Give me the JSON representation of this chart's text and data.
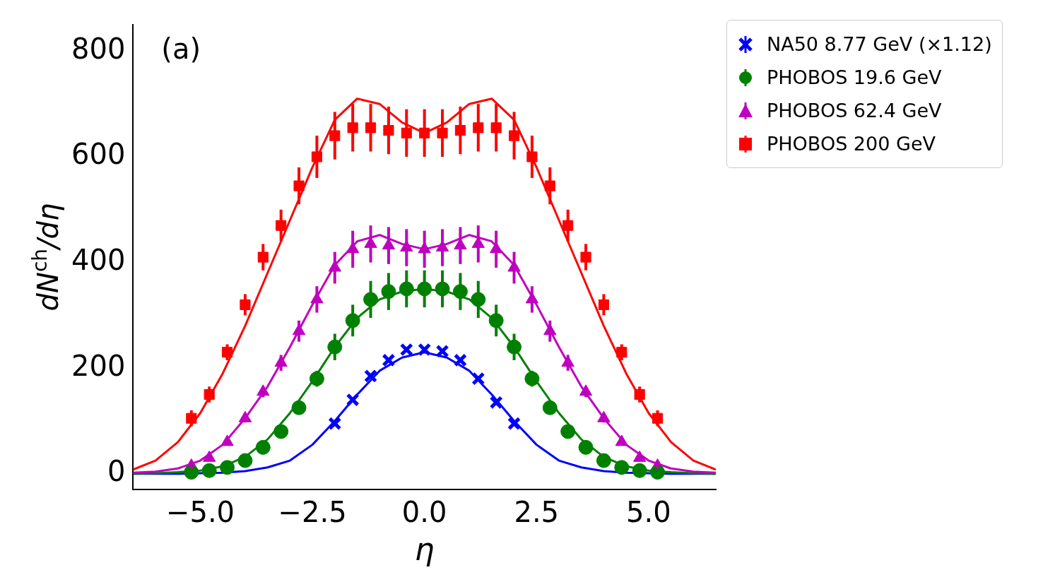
{
  "chart_data": {
    "type": "scatter",
    "xlabel": "η",
    "ylabel": "dN$^{ch}$/dη",
    "annotations": [
      "(a)"
    ],
    "xlim": [
      -6.5,
      6.5
    ],
    "ylim": [
      -30,
      850
    ],
    "xticks": [
      {
        "value": -5,
        "label": "−5.0"
      },
      {
        "value": -2.5,
        "label": "−2.5"
      },
      {
        "value": 0,
        "label": "0.0"
      },
      {
        "value": 2.5,
        "label": "2.5"
      },
      {
        "value": 5,
        "label": "5.0"
      }
    ],
    "yticks": [
      0,
      200,
      400,
      600,
      800
    ],
    "grid": false,
    "legend": "top right",
    "series": [
      {
        "type": "line",
        "color": "#ff0000",
        "marker": "none",
        "line_style": "solid",
        "x": [
          -6.5,
          -6,
          -5.5,
          -5,
          -4.5,
          -4,
          -3.5,
          -3,
          -2.5,
          -2,
          -1.5,
          -1,
          -0.5,
          0,
          0.5,
          1,
          1.5,
          2,
          2.5,
          3,
          3.5,
          4,
          4.5,
          5,
          5.5,
          6,
          6.5
        ],
        "values": [
          8,
          25,
          60,
          115,
          190,
          280,
          380,
          480,
          580,
          670,
          710,
          700,
          665,
          645,
          665,
          700,
          710,
          670,
          580,
          480,
          380,
          280,
          190,
          115,
          60,
          25,
          8
        ]
      },
      {
        "type": "line",
        "color": "#bf00bf",
        "marker": "none",
        "line_style": "solid",
        "x": [
          -6.5,
          -6,
          -5.5,
          -5,
          -4.5,
          -4,
          -3.5,
          -3,
          -2.5,
          -2,
          -1.5,
          -1,
          -0.5,
          0,
          0.5,
          1,
          1.5,
          2,
          2.5,
          3,
          3.5,
          4,
          4.5,
          5,
          5.5,
          6,
          6.5
        ],
        "values": [
          2,
          4,
          10,
          25,
          55,
          105,
          165,
          240,
          320,
          395,
          440,
          452,
          435,
          425,
          435,
          452,
          440,
          395,
          320,
          240,
          165,
          105,
          55,
          25,
          10,
          4,
          2
        ]
      },
      {
        "type": "line",
        "color": "#008000",
        "marker": "none",
        "line_style": "solid",
        "x": [
          -6.5,
          -6,
          -5.5,
          -5,
          -4.5,
          -4,
          -3.5,
          -3,
          -2.5,
          -2,
          -1.5,
          -1,
          -0.5,
          0,
          0.5,
          1,
          1.5,
          2,
          2.5,
          3,
          3.5,
          4,
          4.5,
          5,
          5.5,
          6,
          6.5
        ],
        "values": [
          0,
          1,
          3,
          6,
          14,
          32,
          65,
          115,
          175,
          240,
          295,
          330,
          345,
          350,
          345,
          330,
          295,
          240,
          175,
          115,
          65,
          32,
          14,
          6,
          3,
          1,
          0
        ]
      },
      {
        "type": "line",
        "color": "#0000ff",
        "marker": "none",
        "line_style": "solid",
        "x": [
          -6.5,
          -6,
          -5.5,
          -5,
          -4.5,
          -4,
          -3.5,
          -3,
          -2.5,
          -2,
          -1.5,
          -1,
          -0.5,
          0,
          0.5,
          1,
          1.5,
          2,
          2.5,
          3,
          3.5,
          4,
          4.5,
          5,
          5.5,
          6,
          6.5
        ],
        "values": [
          0,
          0,
          0,
          1,
          2,
          5,
          12,
          25,
          55,
          100,
          150,
          195,
          220,
          230,
          220,
          195,
          150,
          100,
          55,
          25,
          12,
          5,
          2,
          1,
          0,
          0,
          0
        ]
      },
      {
        "name": "NA50 8.77 GeV (×1.12)",
        "color": "#0000ff",
        "marker": "cross",
        "x": [
          -2,
          -1.6,
          -1.2,
          -0.8,
          -0.4,
          0,
          0.4,
          0.8,
          1.2,
          1.6,
          2
        ],
        "values": [
          95,
          140,
          185,
          215,
          235,
          235,
          232,
          215,
          180,
          135,
          95
        ]
      },
      {
        "name": "PHOBOS 19.6 GeV",
        "color": "#008000",
        "marker": "circle",
        "x": [
          -5.2,
          -4.8,
          -4.4,
          -4,
          -3.6,
          -3.2,
          -2.8,
          -2.4,
          -2,
          -1.6,
          -1.2,
          -0.8,
          -0.4,
          0,
          0.4,
          0.8,
          1.2,
          1.6,
          2,
          2.4,
          2.8,
          3.2,
          3.6,
          4,
          4.4,
          4.8,
          5.2
        ],
        "values": [
          3,
          6,
          12,
          25,
          50,
          80,
          125,
          180,
          240,
          290,
          330,
          345,
          350,
          350,
          350,
          345,
          330,
          290,
          240,
          180,
          125,
          80,
          50,
          25,
          12,
          6,
          3
        ],
        "errors": [
          null,
          null,
          null,
          null,
          5,
          5,
          10,
          15,
          25,
          30,
          35,
          35,
          35,
          35,
          35,
          35,
          35,
          30,
          25,
          15,
          10,
          5,
          5,
          null,
          null,
          null,
          null
        ]
      },
      {
        "name": "PHOBOS 62.4 GeV",
        "color": "#bf00bf",
        "marker": "triangle",
        "x": [
          -5.2,
          -4.8,
          -4.4,
          -4,
          -3.6,
          -3.2,
          -2.8,
          -2.4,
          -2,
          -1.6,
          -1.2,
          -0.8,
          -0.4,
          0,
          0.4,
          0.8,
          1.2,
          1.6,
          2,
          2.4,
          2.8,
          3.2,
          3.6,
          4,
          4.4,
          4.8,
          5.2
        ],
        "values": [
          15,
          30,
          60,
          105,
          155,
          210,
          270,
          330,
          390,
          425,
          435,
          432,
          428,
          425,
          428,
          432,
          435,
          425,
          390,
          330,
          270,
          210,
          155,
          105,
          60,
          30,
          15
        ],
        "errors": [
          5,
          5,
          5,
          8,
          10,
          15,
          20,
          25,
          30,
          35,
          35,
          35,
          35,
          35,
          35,
          35,
          35,
          35,
          30,
          25,
          20,
          15,
          10,
          8,
          5,
          5,
          5
        ]
      },
      {
        "name": "PHOBOS 200 GeV",
        "color": "#ff0000",
        "marker": "square",
        "x": [
          -5.2,
          -4.8,
          -4.4,
          -4,
          -3.6,
          -3.2,
          -2.8,
          -2.4,
          -2,
          -1.6,
          -1.2,
          -0.8,
          -0.4,
          0,
          0.4,
          0.8,
          1.2,
          1.6,
          2,
          2.4,
          2.8,
          3.2,
          3.6,
          4,
          4.4,
          4.8,
          5.2
        ],
        "values": [
          105,
          150,
          230,
          320,
          410,
          470,
          545,
          600,
          640,
          655,
          655,
          650,
          645,
          645,
          645,
          650,
          655,
          655,
          640,
          600,
          545,
          470,
          410,
          320,
          230,
          150,
          105
        ],
        "errors": [
          15,
          15,
          15,
          20,
          25,
          30,
          35,
          40,
          45,
          45,
          45,
          45,
          45,
          45,
          45,
          45,
          45,
          45,
          45,
          40,
          35,
          30,
          25,
          20,
          15,
          15,
          15
        ]
      }
    ]
  }
}
